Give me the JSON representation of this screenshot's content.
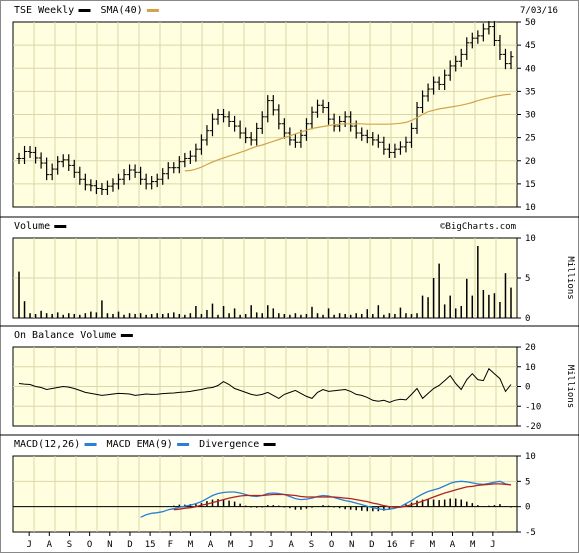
{
  "date": "7/03/16",
  "watermark": "©BigCharts.com",
  "colors": {
    "panel_bg": "#ffffe0",
    "grid": "#d8d8a8",
    "sma": "#d4a24a",
    "macd": "#2a7fd6",
    "ema": "#b22222",
    "price": "#000000"
  },
  "x_ticks": [
    "J",
    "A",
    "S",
    "O",
    "N",
    "D",
    "15",
    "F",
    "M",
    "A",
    "M",
    "J",
    "J",
    "A",
    "S",
    "O",
    "N",
    "D",
    "16",
    "F",
    "M",
    "A",
    "M",
    "J"
  ],
  "chart_data": [
    {
      "type": "line",
      "panel": "price",
      "series": [
        {
          "name": "TSE Weekly",
          "values": [
            20.5,
            22.0,
            21.8,
            20.6,
            19.5,
            17.0,
            18.2,
            19.8,
            20.2,
            19.0,
            17.5,
            16.0,
            14.8,
            14.6,
            14.0,
            13.8,
            14.5,
            15.0,
            16.0,
            17.0,
            18.0,
            17.5,
            16.0,
            15.0,
            15.5,
            16.0,
            17.2,
            18.5,
            18.5,
            19.8,
            20.5,
            21.0,
            22.5,
            24.5,
            26.5,
            29.0,
            30.0,
            29.5,
            28.5,
            27.5,
            26.0,
            25.0,
            24.5,
            27.0,
            29.5,
            33.0,
            31.0,
            28.0,
            26.0,
            24.5,
            24.0,
            25.5,
            28.0,
            30.5,
            32.0,
            31.5,
            29.0,
            27.5,
            28.5,
            29.5,
            27.5,
            26.0,
            25.5,
            25.0,
            24.5,
            24.0,
            22.5,
            21.8,
            22.5,
            23.0,
            24.0,
            27.0,
            31.5,
            34.0,
            35.5,
            37.0,
            36.5,
            38.5,
            40.5,
            41.5,
            43.0,
            45.5,
            46.5,
            47.0,
            48.5,
            49.0,
            46.0,
            43.0,
            41.0,
            42.5
          ]
        },
        {
          "name": "SMA(40)",
          "values": [
            null,
            null,
            null,
            null,
            null,
            null,
            null,
            null,
            null,
            null,
            null,
            null,
            null,
            null,
            null,
            null,
            null,
            null,
            null,
            null,
            null,
            null,
            null,
            null,
            null,
            null,
            null,
            null,
            null,
            null,
            17.8,
            17.9,
            18.2,
            18.6,
            19.2,
            19.7,
            20.2,
            20.6,
            21.0,
            21.4,
            21.8,
            22.2,
            22.7,
            23.1,
            23.4,
            23.8,
            24.2,
            24.6,
            25.0,
            25.4,
            25.8,
            26.2,
            26.6,
            27.0,
            27.2,
            27.4,
            27.6,
            27.8,
            27.9,
            28.0,
            28.0,
            28.0,
            28.0,
            27.9,
            27.9,
            27.9,
            27.9,
            27.9,
            28.0,
            28.1,
            28.3,
            28.7,
            29.3,
            30.0,
            30.6,
            30.9,
            31.2,
            31.4,
            31.6,
            31.8,
            32.0,
            32.3,
            32.6,
            33.0,
            33.3,
            33.6,
            33.9,
            34.1,
            34.3,
            34.4
          ]
        }
      ],
      "ylim": [
        10,
        50
      ],
      "yticks": [
        10,
        15,
        20,
        25,
        30,
        35,
        40,
        45,
        50
      ]
    },
    {
      "type": "bar",
      "panel": "volume",
      "series": [
        {
          "name": "Volume",
          "values": [
            5.8,
            2.1,
            0.6,
            0.5,
            0.9,
            0.6,
            0.5,
            0.7,
            0.4,
            0.6,
            0.5,
            0.4,
            0.6,
            0.8,
            0.7,
            2.2,
            0.6,
            0.5,
            0.8,
            0.4,
            0.6,
            0.5,
            0.6,
            0.4,
            0.5,
            0.6,
            0.5,
            0.6,
            0.7,
            0.5,
            0.4,
            0.6,
            1.5,
            0.5,
            1.0,
            1.8,
            0.4,
            1.5,
            0.6,
            1.2,
            0.4,
            0.5,
            1.6,
            0.7,
            0.6,
            1.6,
            1.2,
            0.6,
            0.5,
            0.4,
            0.6,
            0.4,
            0.5,
            1.4,
            0.6,
            0.4,
            1.2,
            0.4,
            0.6,
            0.5,
            0.4,
            0.6,
            0.5,
            1.1,
            0.5,
            1.6,
            0.4,
            0.6,
            0.5,
            1.3,
            0.6,
            0.5,
            0.6,
            2.8,
            2.6,
            5.0,
            6.8,
            1.7,
            2.8,
            1.2,
            1.5,
            4.9,
            2.8,
            9.0,
            3.5,
            2.9,
            3.1,
            2.0,
            5.6,
            3.8
          ]
        }
      ],
      "ylim": [
        0,
        10
      ],
      "yticks": [
        0,
        5,
        10
      ],
      "ylabel": "Millions"
    },
    {
      "type": "line",
      "panel": "obv",
      "series": [
        {
          "name": "On Balance Volume",
          "values": [
            1.5,
            1.2,
            1.0,
            0.0,
            -0.5,
            -1.5,
            -1.0,
            -0.5,
            0.0,
            -0.3,
            -1.0,
            -2.0,
            -3.0,
            -3.5,
            -4.0,
            -4.5,
            -4.2,
            -3.8,
            -3.5,
            -3.6,
            -3.8,
            -4.5,
            -4.2,
            -3.8,
            -4.0,
            -3.9,
            -3.6,
            -3.4,
            -3.3,
            -3.0,
            -2.8,
            -2.5,
            -2.0,
            -1.5,
            -0.8,
            -0.5,
            0.5,
            2.5,
            1.0,
            -1.0,
            -2.0,
            -3.0,
            -4.0,
            -4.5,
            -4.0,
            -3.0,
            -4.5,
            -6.0,
            -4.0,
            -3.0,
            -2.0,
            -3.5,
            -5.0,
            -6.0,
            -3.0,
            -1.5,
            -2.5,
            -2.2,
            -1.8,
            -1.5,
            -2.5,
            -4.0,
            -4.5,
            -5.5,
            -7.0,
            -7.5,
            -7.0,
            -8.0,
            -7.0,
            -6.5,
            -6.8,
            -4.0,
            -1.0,
            -6.0,
            -3.5,
            -1.0,
            0.5,
            3.0,
            5.5,
            1.5,
            -1.5,
            3.5,
            6.5,
            3.5,
            3.0,
            9.0,
            6.5,
            4.0,
            -2.5,
            1.0
          ]
        }
      ],
      "ylim": [
        -20,
        20
      ],
      "yticks": [
        -20,
        -10,
        0,
        10,
        20
      ],
      "ylabel": "Millions"
    },
    {
      "type": "line",
      "panel": "macd",
      "series": [
        {
          "name": "MACD(12,26)",
          "values": [
            null,
            null,
            null,
            null,
            null,
            null,
            null,
            null,
            null,
            null,
            null,
            null,
            null,
            null,
            null,
            null,
            null,
            null,
            null,
            null,
            null,
            null,
            -2.1,
            -1.6,
            -1.3,
            -1.2,
            -1.0,
            -0.6,
            -0.4,
            -0.1,
            0.1,
            0.3,
            0.6,
            1.0,
            1.6,
            2.2,
            2.6,
            2.8,
            2.9,
            2.9,
            2.7,
            2.4,
            2.1,
            2.0,
            2.2,
            2.6,
            2.7,
            2.6,
            2.4,
            2.0,
            1.6,
            1.4,
            1.5,
            1.7,
            2.0,
            2.2,
            2.1,
            1.8,
            1.5,
            1.2,
            1.0,
            0.7,
            0.4,
            0.1,
            -0.2,
            -0.4,
            -0.6,
            -0.5,
            -0.3,
            0.0,
            0.6,
            1.2,
            1.9,
            2.5,
            3.0,
            3.3,
            3.6,
            4.1,
            4.6,
            4.9,
            5.0,
            4.9,
            4.7,
            4.5,
            4.4,
            4.6,
            4.8,
            5.0,
            4.5,
            4.3
          ]
        },
        {
          "name": "MACD EMA(9)",
          "values": [
            null,
            null,
            null,
            null,
            null,
            null,
            null,
            null,
            null,
            null,
            null,
            null,
            null,
            null,
            null,
            null,
            null,
            null,
            null,
            null,
            null,
            null,
            null,
            null,
            null,
            null,
            null,
            null,
            -0.6,
            -0.5,
            -0.3,
            -0.2,
            0.0,
            0.3,
            0.5,
            0.8,
            1.1,
            1.4,
            1.7,
            1.9,
            2.1,
            2.2,
            2.2,
            2.2,
            2.2,
            2.3,
            2.4,
            2.4,
            2.4,
            2.3,
            2.2,
            2.0,
            1.9,
            1.9,
            1.9,
            1.9,
            1.9,
            1.9,
            1.8,
            1.7,
            1.6,
            1.4,
            1.2,
            1.0,
            0.7,
            0.5,
            0.2,
            0.0,
            -0.1,
            -0.1,
            0.1,
            0.4,
            0.7,
            1.1,
            1.5,
            1.9,
            2.3,
            2.7,
            3.0,
            3.3,
            3.6,
            3.9,
            4.0,
            4.2,
            4.3,
            4.4,
            4.5,
            4.5,
            4.4,
            4.3
          ]
        },
        {
          "name": "Divergence",
          "values": [
            null,
            null,
            null,
            null,
            null,
            null,
            null,
            null,
            null,
            null,
            null,
            null,
            null,
            null,
            null,
            null,
            null,
            null,
            null,
            null,
            null,
            null,
            null,
            null,
            null,
            null,
            null,
            null,
            0.2,
            0.4,
            0.4,
            0.5,
            0.6,
            0.7,
            1.1,
            1.4,
            1.5,
            1.4,
            1.2,
            1.0,
            0.6,
            0.2,
            -0.1,
            -0.2,
            0.0,
            0.3,
            0.3,
            0.2,
            0.0,
            -0.3,
            -0.6,
            -0.6,
            -0.4,
            -0.2,
            0.1,
            0.3,
            0.2,
            -0.1,
            -0.3,
            -0.5,
            -0.6,
            -0.7,
            -0.8,
            -0.9,
            -0.9,
            -0.9,
            -0.8,
            -0.5,
            -0.2,
            0.1,
            0.5,
            0.8,
            1.2,
            1.4,
            1.5,
            1.4,
            1.3,
            1.4,
            1.6,
            1.6,
            1.4,
            1.0,
            0.7,
            0.3,
            0.1,
            0.2,
            0.3,
            0.5,
            0.1,
            0.0
          ]
        }
      ],
      "ylim": [
        -5,
        10
      ],
      "yticks": [
        -5,
        0,
        5,
        10
      ]
    }
  ],
  "legends": {
    "price": [
      {
        "text": "TSE Weekly",
        "swatch": "#000000"
      },
      {
        "text": "SMA(40)",
        "swatch": "#d4a24a"
      }
    ],
    "volume": [
      {
        "text": "Volume",
        "swatch": "#000000"
      }
    ],
    "obv": [
      {
        "text": "On Balance Volume",
        "swatch": "#000000"
      }
    ],
    "macd": [
      {
        "text": "MACD(12,26)",
        "swatch": "#2a7fd6"
      },
      {
        "text": "MACD EMA(9)",
        "swatch": "#2a7fd6"
      },
      {
        "text": "Divergence",
        "swatch": "#000000"
      }
    ]
  }
}
